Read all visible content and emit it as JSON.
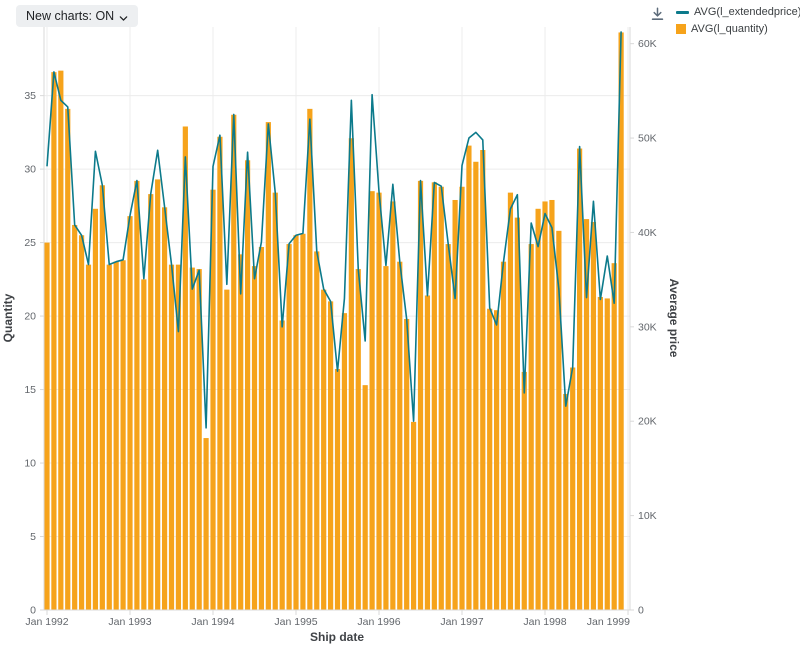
{
  "toolbar": {
    "new_charts_label": "New charts: ON"
  },
  "download": {
    "tooltip": "Download"
  },
  "legend": [
    {
      "label": "AVG(l_extendedprice)",
      "color": "#0c7a8b",
      "swatch": "line"
    },
    {
      "label": "AVG(l_quantity)",
      "color": "#f6a31b",
      "swatch": "square"
    }
  ],
  "colors": {
    "bar": "#f6a31b",
    "line": "#0c7a8b",
    "grid": "#ececec",
    "axis": "#d9d9d9",
    "tick_text": "#63676c",
    "title_text": "#3f4246",
    "icon": "#5c6b7a"
  },
  "chart_data": {
    "type": "combo-bar-line",
    "title": "",
    "xlabel": "Ship date",
    "x_tick_labels": [
      "Jan 1992",
      "Jan 1993",
      "Jan 1994",
      "Jan 1995",
      "Jan 1996",
      "Jan 1997",
      "Jan 1998",
      "Jan 1999"
    ],
    "left_axis": {
      "title": "Quantity",
      "ticks": [
        0,
        5,
        10,
        15,
        20,
        25,
        30,
        35
      ],
      "range": [
        0,
        39.5
      ],
      "series": "AVG(l_quantity)"
    },
    "right_axis": {
      "title": "Average price",
      "ticks": [
        0,
        10000,
        20000,
        30000,
        40000,
        50000,
        60000
      ],
      "tick_labels": [
        "0",
        "10K",
        "20K",
        "30K",
        "40K",
        "50K",
        "60K"
      ],
      "range": [
        0,
        61500
      ],
      "series": "AVG(l_extendedprice)"
    },
    "grid": {
      "horizontal": true,
      "vertical": true
    },
    "legend_position": "top-right",
    "months": [
      "Jan 1992",
      "Feb 1992",
      "Mar 1992",
      "Apr 1992",
      "May 1992",
      "Jun 1992",
      "Jul 1992",
      "Aug 1992",
      "Sep 1992",
      "Oct 1992",
      "Nov 1992",
      "Dec 1992",
      "Jan 1993",
      "Feb 1993",
      "Mar 1993",
      "Apr 1993",
      "May 1993",
      "Jun 1993",
      "Jul 1993",
      "Aug 1993",
      "Sep 1993",
      "Oct 1993",
      "Nov 1993",
      "Dec 1993",
      "Jan 1994",
      "Feb 1994",
      "Mar 1994",
      "Apr 1994",
      "May 1994",
      "Jun 1994",
      "Jul 1994",
      "Aug 1994",
      "Sep 1994",
      "Oct 1994",
      "Nov 1994",
      "Dec 1994",
      "Jan 1995",
      "Feb 1995",
      "Mar 1995",
      "Apr 1995",
      "May 1995",
      "Jun 1995",
      "Jul 1995",
      "Aug 1995",
      "Sep 1995",
      "Oct 1995",
      "Nov 1995",
      "Dec 1995",
      "Jan 1996",
      "Feb 1996",
      "Mar 1996",
      "Apr 1996",
      "May 1996",
      "Jun 1996",
      "Jul 1996",
      "Aug 1996",
      "Sep 1996",
      "Oct 1996",
      "Nov 1996",
      "Dec 1996",
      "Jan 1997",
      "Feb 1997",
      "Mar 1997",
      "Apr 1997",
      "May 1997",
      "Jun 1997",
      "Jul 1997",
      "Aug 1997",
      "Sep 1997",
      "Oct 1997",
      "Nov 1997",
      "Dec 1997",
      "Jan 1998",
      "Feb 1998",
      "Mar 1998",
      "Apr 1998",
      "May 1998",
      "Jun 1998",
      "Jul 1998",
      "Aug 1998",
      "Sep 1998",
      "Oct 1998",
      "Nov 1998",
      "Dec 1998"
    ],
    "series": [
      {
        "name": "AVG(l_quantity)",
        "type": "bar",
        "axis": "left",
        "color": "#f6a31b",
        "values": [
          25.0,
          36.6,
          36.7,
          34.1,
          26.2,
          25.5,
          23.5,
          27.3,
          28.9,
          23.5,
          23.7,
          23.8,
          26.8,
          29.2,
          22.5,
          28.3,
          29.3,
          27.4,
          23.5,
          23.5,
          32.9,
          23.3,
          23.2,
          11.7,
          28.6,
          32.2,
          21.8,
          33.7,
          24.2,
          30.6,
          23.4,
          24.7,
          33.2,
          28.4,
          19.7,
          24.9,
          25.5,
          25.6,
          34.1,
          24.4,
          21.8,
          21.0,
          16.4,
          20.2,
          32.1,
          23.2,
          15.3,
          28.5,
          28.4,
          23.4,
          27.8,
          23.7,
          19.8,
          12.8,
          29.2,
          21.4,
          29.1,
          28.8,
          24.9,
          27.9,
          28.8,
          31.6,
          30.5,
          31.3,
          20.5,
          20.4,
          23.7,
          28.4,
          26.7,
          16.2,
          24.9,
          27.3,
          27.8,
          27.9,
          25.8,
          14.7,
          16.5,
          31.4,
          26.6,
          26.4,
          21.3,
          21.2,
          23.6,
          39.3
        ]
      },
      {
        "name": "AVG(l_extendedprice)",
        "type": "line",
        "axis": "right",
        "color": "#0c7a8b",
        "values": [
          47000,
          57000,
          54000,
          53300,
          40800,
          39700,
          36600,
          48600,
          45000,
          36600,
          36900,
          37100,
          41800,
          45500,
          35100,
          44100,
          48700,
          42700,
          36600,
          29500,
          48000,
          34000,
          36000,
          19300,
          47000,
          50300,
          34500,
          52500,
          33500,
          48500,
          35100,
          39000,
          51500,
          44200,
          30000,
          38800,
          39700,
          39900,
          52000,
          38000,
          34000,
          32700,
          25300,
          33000,
          54000,
          36100,
          28500,
          54600,
          44300,
          36500,
          45100,
          36900,
          30800,
          20000,
          45500,
          33300,
          45300,
          44900,
          38800,
          33000,
          47100,
          50000,
          50600,
          49800,
          32000,
          30200,
          36900,
          42500,
          44000,
          23000,
          41000,
          38500,
          42000,
          40500,
          34000,
          21600,
          25700,
          49100,
          33100,
          43300,
          32900,
          37500,
          32500,
          61300
        ]
      }
    ]
  }
}
